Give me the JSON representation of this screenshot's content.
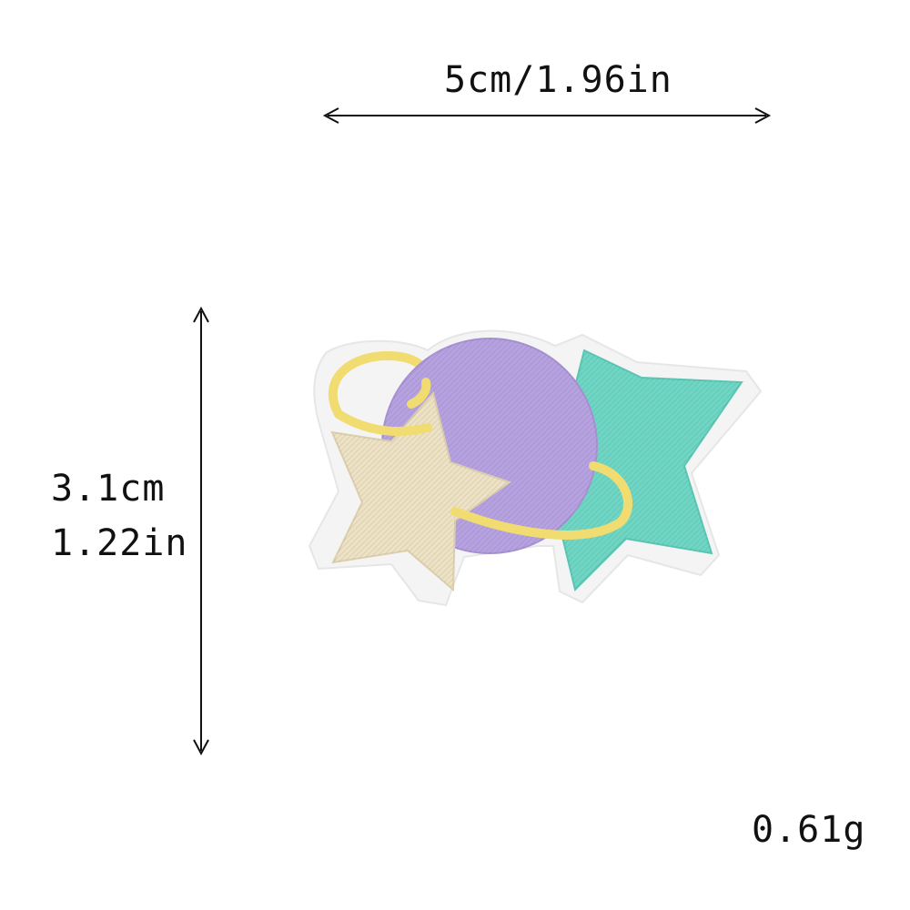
{
  "dimensions": {
    "width_label": "5cm/1.96in",
    "height_cm_label": "3.1cm",
    "height_in_label": "1.22in",
    "weight_label": "0.61g"
  },
  "product": {
    "name": "embroidered-patch",
    "motif": [
      "star-icon",
      "planet-icon",
      "ring-icon",
      "star-icon"
    ],
    "colors": {
      "cream_star": "#ede2c4",
      "planet": "#b6a2e0",
      "teal_star": "#6fd6c4",
      "ring": "#f1dc72",
      "backing": "#f4f4f4"
    }
  }
}
